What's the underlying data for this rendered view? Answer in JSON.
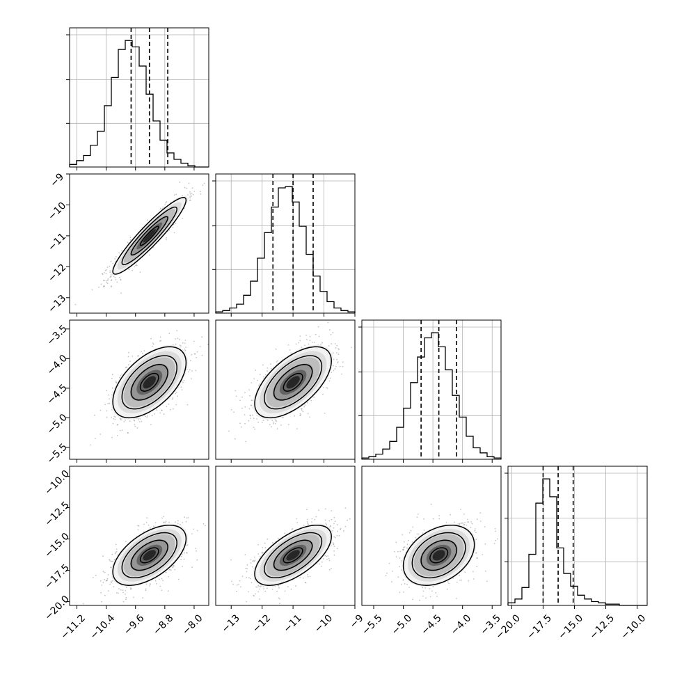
{
  "chart_data": {
    "type": "corner",
    "grid": true,
    "parameters": [
      {
        "range": [
          -11.4,
          -7.6
        ],
        "ticks": [
          -11.2,
          -10.4,
          -9.6,
          -8.8,
          -8.0
        ],
        "tick_labels": [
          "−11.2",
          "−10.4",
          "−9.6",
          "−8.8",
          "−8.0"
        ],
        "quantiles": [
          -9.72,
          -9.22,
          -8.72
        ],
        "mean": -9.22,
        "std": 0.5
      },
      {
        "range": [
          -13.5,
          -9.0
        ],
        "ticks": [
          -13,
          -12,
          -11,
          -10,
          -9
        ],
        "tick_labels": [
          "−13",
          "−12",
          "−11",
          "−10",
          "−9"
        ],
        "quantiles": [
          -11.65,
          -11.0,
          -10.35
        ],
        "mean": -11.0,
        "std": 0.62
      },
      {
        "range": [
          -5.7,
          -3.35
        ],
        "ticks": [
          -5.5,
          -5.0,
          -4.5,
          -4.0,
          -3.5
        ],
        "tick_labels": [
          "−5.5",
          "−5.0",
          "−4.5",
          "−4.0",
          "−3.5"
        ],
        "quantiles": [
          -4.7,
          -4.4,
          -4.1
        ],
        "mean": -4.4,
        "std": 0.3
      },
      {
        "range": [
          -20.3,
          -9.2
        ],
        "ticks": [
          -20.0,
          -17.5,
          -15.0,
          -12.5,
          -10.0
        ],
        "tick_labels": [
          "−20.0",
          "−17.5",
          "−15.0",
          "−12.5",
          "−10.0"
        ],
        "quantiles": [
          -17.5,
          -16.3,
          -15.1
        ],
        "mean": -16.3,
        "std": 1.2
      }
    ],
    "histograms": [
      {
        "param": 0,
        "bin_start": -11.4,
        "bin_width": 0.19,
        "counts": [
          2,
          5,
          9,
          17,
          28,
          48,
          70,
          92,
          99,
          94,
          79,
          57,
          36,
          21,
          11,
          6,
          3,
          1,
          0,
          0
        ]
      },
      {
        "param": 1,
        "bin_start": -13.5,
        "bin_width": 0.225,
        "counts": [
          1,
          2,
          4,
          7,
          14,
          25,
          43,
          63,
          83,
          98,
          99,
          87,
          68,
          46,
          29,
          17,
          9,
          4,
          2,
          1
        ]
      },
      {
        "param": 2,
        "bin_start": -5.7,
        "bin_width": 0.1175,
        "counts": [
          1,
          2,
          4,
          8,
          14,
          25,
          40,
          60,
          80,
          95,
          99,
          88,
          70,
          50,
          33,
          18,
          9,
          5,
          2,
          1
        ]
      },
      {
        "param": 3,
        "bin_start": -20.3,
        "bin_width": 0.555,
        "counts": [
          2,
          5,
          14,
          40,
          80,
          99,
          85,
          45,
          25,
          15,
          8,
          5,
          3,
          2,
          1,
          1,
          0,
          0,
          0,
          0
        ]
      }
    ],
    "correlations": [
      {
        "x": 0,
        "y": 1,
        "rho": 0.93
      },
      {
        "x": 0,
        "y": 2,
        "rho": 0.55
      },
      {
        "x": 1,
        "y": 2,
        "rho": 0.6
      },
      {
        "x": 0,
        "y": 3,
        "rho": 0.55
      },
      {
        "x": 1,
        "y": 3,
        "rho": 0.62
      },
      {
        "x": 2,
        "y": 3,
        "rho": 0.35
      }
    ]
  }
}
